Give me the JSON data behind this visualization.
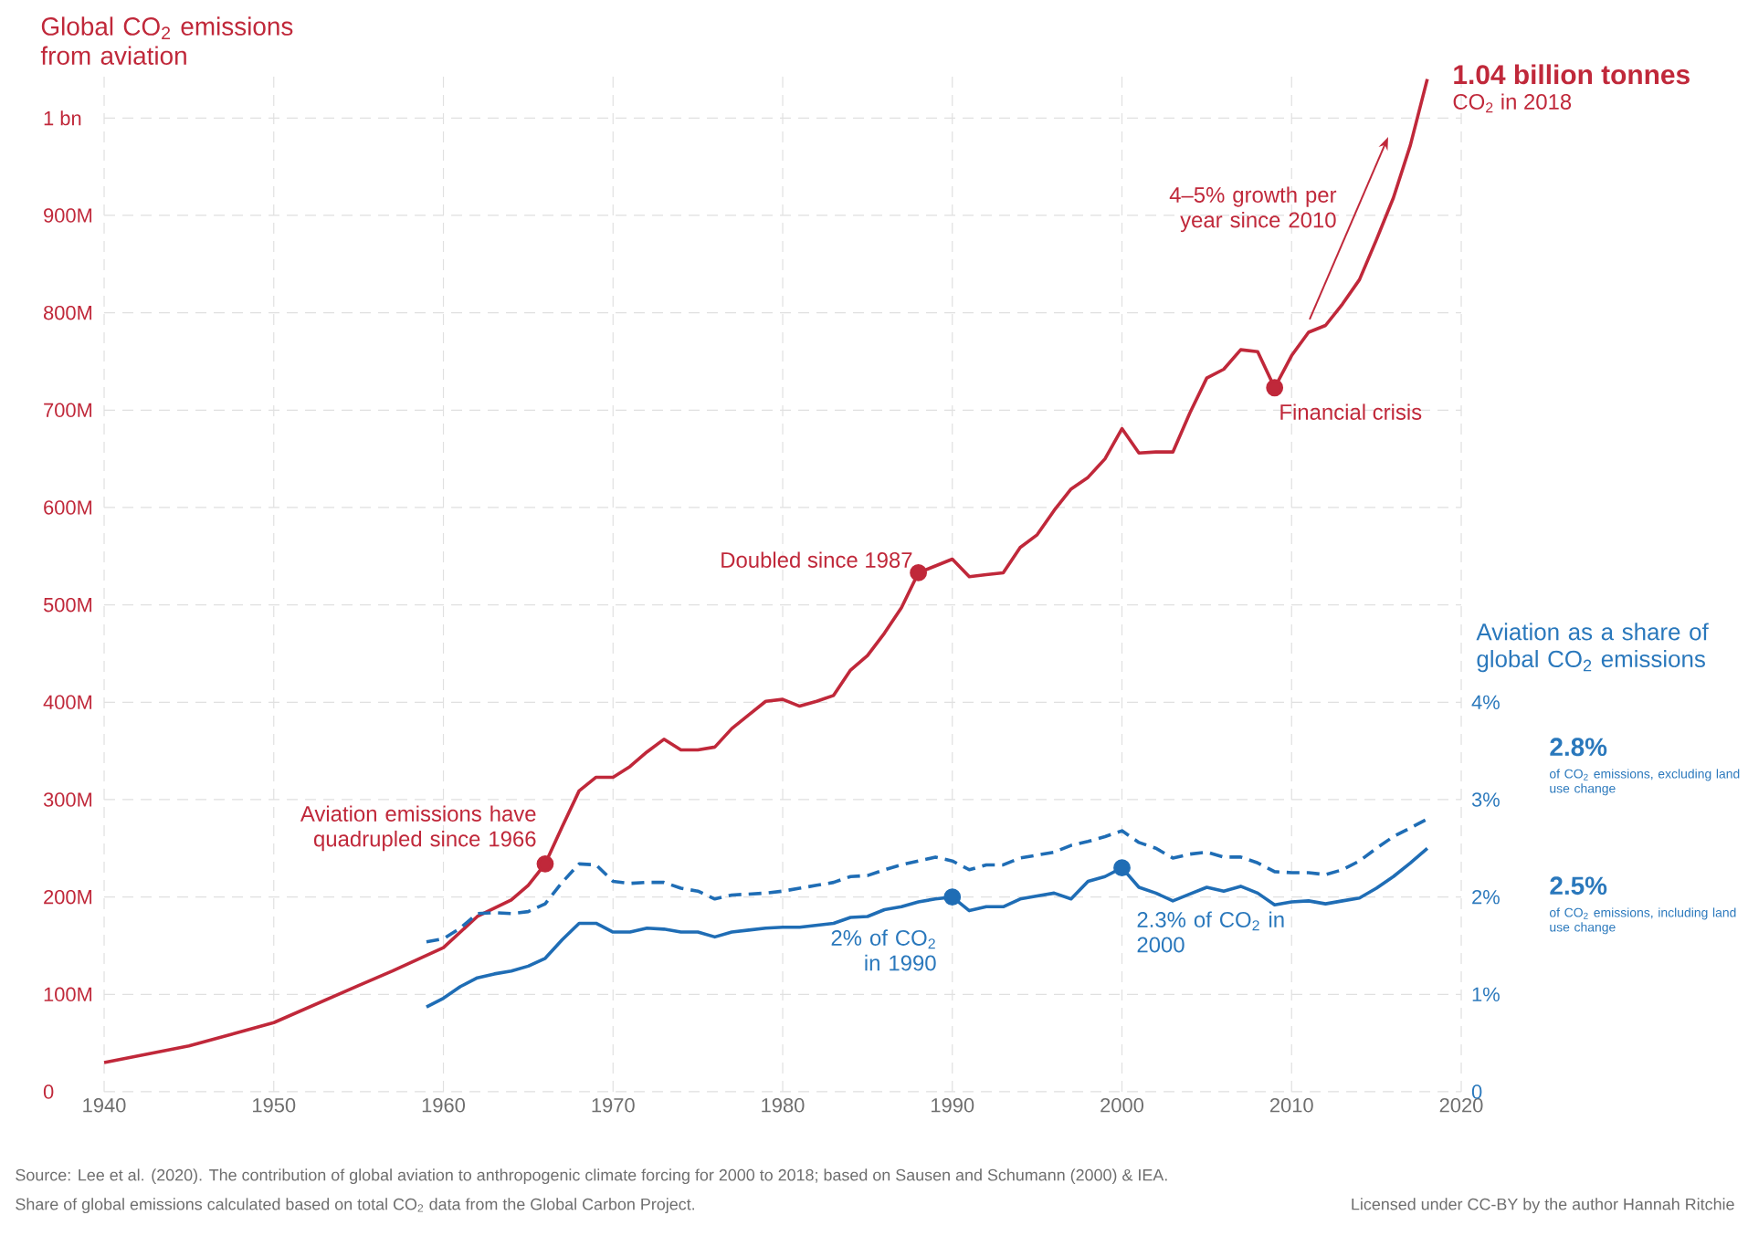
{
  "chart_data": {
    "type": "line",
    "ylabel": "Global CO$_{2}$ emissions from aviation",
    "y2label": "Aviation as a share of global CO$_{2}$ emissions",
    "xlim": [
      1940,
      2020
    ],
    "xticks": [
      1940,
      1950,
      1960,
      1970,
      1980,
      1990,
      2000,
      2010,
      2020
    ],
    "ylim": [
      0,
      1050000000
    ],
    "yticks": [
      0,
      {
        "value": 100000000,
        "label": "100M"
      },
      {
        "value": 200000000,
        "label": "200M"
      },
      {
        "value": 300000000,
        "label": "300M"
      },
      {
        "value": 400000000,
        "label": "400M"
      },
      {
        "value": 500000000,
        "label": "500M"
      },
      {
        "value": 600000000,
        "label": "600M"
      },
      {
        "value": 700000000,
        "label": "700M"
      },
      {
        "value": 800000000,
        "label": "800M"
      },
      {
        "value": 900000000,
        "label": "900M"
      },
      {
        "value": 1000000000,
        "label": "1 bn"
      }
    ],
    "y2lim": [
      0,
      10.5
    ],
    "y2ticks": [
      0,
      {
        "value": 1,
        "label": "1%"
      },
      {
        "value": 2,
        "label": "2%"
      },
      {
        "value": 3,
        "label": "3%"
      },
      {
        "value": 4,
        "label": "4%"
      }
    ],
    "grid": true,
    "series": [
      {
        "color": "#c0283a",
        "x": [
          1940,
          1945,
          1950,
          1955,
          1957,
          1960,
          1962,
          1964,
          1965,
          1966,
          1967,
          1968,
          1969,
          1970,
          1971,
          1972,
          1973,
          1974,
          1975,
          1976,
          1977,
          1978,
          1979,
          1980,
          1981,
          1982,
          1983,
          1984,
          1985,
          1986,
          1987,
          1988,
          1989,
          1990,
          1991,
          1992,
          1993,
          1994,
          1995,
          1996,
          1997,
          1998,
          1999,
          2000,
          2001,
          2002,
          2003,
          2004,
          2005,
          2006,
          2007,
          2008,
          2009,
          2010,
          2011,
          2012,
          2013,
          2014,
          2015,
          2016,
          2017,
          2018
        ],
        "values": [
          30000000,
          47000000,
          71000000,
          109000000,
          124000000,
          148000000,
          180000000,
          197000000,
          212000000,
          234000000,
          272000000,
          309000000,
          323000000,
          323000000,
          334000000,
          349000000,
          362000000,
          351000000,
          351000000,
          354000000,
          373000000,
          387000000,
          401000000,
          403000000,
          396000000,
          401000000,
          407000000,
          433000000,
          448000000,
          471000000,
          497000000,
          533000000,
          540000000,
          547000000,
          529000000,
          531000000,
          533000000,
          559000000,
          572000000,
          597000000,
          619000000,
          631000000,
          650000000,
          681000000,
          656000000,
          657000000,
          657000000,
          697000000,
          733000000,
          742000000,
          762000000,
          760000000,
          723000000,
          756000000,
          780000000,
          787000000,
          809000000,
          834000000,
          875000000,
          918000000,
          972000000,
          1040000000
        ]
      },
      {
        "color": "#1f6db5",
        "axis": "y2",
        "x": [
          1959,
          1960,
          1961,
          1962,
          1963,
          1964,
          1965,
          1966,
          1967,
          1968,
          1969,
          1970,
          1971,
          1972,
          1973,
          1974,
          1975,
          1976,
          1977,
          1978,
          1979,
          1980,
          1981,
          1982,
          1983,
          1984,
          1985,
          1986,
          1987,
          1988,
          1989,
          1990,
          1991,
          1992,
          1993,
          1994,
          1995,
          1996,
          1997,
          1998,
          1999,
          2000,
          2001,
          2002,
          2003,
          2004,
          2005,
          2006,
          2007,
          2008,
          2009,
          2010,
          2011,
          2012,
          2013,
          2014,
          2015,
          2016,
          2017,
          2018
        ],
        "values": [
          0.87,
          0.96,
          1.08,
          1.17,
          1.21,
          1.24,
          1.29,
          1.37,
          1.56,
          1.73,
          1.73,
          1.64,
          1.64,
          1.68,
          1.67,
          1.64,
          1.64,
          1.59,
          1.64,
          1.66,
          1.68,
          1.69,
          1.69,
          1.71,
          1.73,
          1.79,
          1.8,
          1.87,
          1.9,
          1.95,
          1.98,
          2.0,
          1.86,
          1.9,
          1.9,
          1.98,
          2.01,
          2.04,
          1.98,
          2.16,
          2.21,
          2.3,
          2.1,
          2.04,
          1.96,
          2.03,
          2.1,
          2.06,
          2.11,
          2.04,
          1.92,
          1.95,
          1.96,
          1.93,
          1.96,
          1.99,
          2.09,
          2.21,
          2.35,
          2.5
        ]
      },
      {
        "color": "#1f6db5",
        "axis": "y2",
        "line_style": "dashed",
        "x": [
          1959,
          1960,
          1961,
          1962,
          1963,
          1964,
          1965,
          1966,
          1967,
          1968,
          1969,
          1970,
          1971,
          1972,
          1973,
          1974,
          1975,
          1976,
          1977,
          1978,
          1979,
          1980,
          1981,
          1982,
          1983,
          1984,
          1985,
          1986,
          1987,
          1988,
          1989,
          1990,
          1991,
          1992,
          1993,
          1994,
          1995,
          1996,
          1997,
          1998,
          1999,
          2000,
          2001,
          2002,
          2003,
          2004,
          2005,
          2006,
          2007,
          2008,
          2009,
          2010,
          2011,
          2012,
          2013,
          2014,
          2015,
          2016,
          2017,
          2018
        ],
        "values": [
          1.54,
          1.57,
          1.68,
          1.83,
          1.84,
          1.83,
          1.85,
          1.93,
          2.15,
          2.34,
          2.33,
          2.16,
          2.14,
          2.15,
          2.15,
          2.09,
          2.06,
          1.98,
          2.02,
          2.03,
          2.04,
          2.06,
          2.09,
          2.12,
          2.15,
          2.21,
          2.22,
          2.28,
          2.33,
          2.37,
          2.41,
          2.37,
          2.28,
          2.33,
          2.33,
          2.4,
          2.43,
          2.46,
          2.53,
          2.57,
          2.62,
          2.68,
          2.56,
          2.5,
          2.4,
          2.44,
          2.46,
          2.41,
          2.41,
          2.35,
          2.26,
          2.25,
          2.25,
          2.23,
          2.28,
          2.37,
          2.5,
          2.62,
          2.71,
          2.8
        ]
      },
      {
        "type": "scatter",
        "marker": "circle",
        "color": "#c0283a",
        "x": [
          1966,
          1988,
          2009
        ],
        "values": [
          234000000,
          533000000,
          723000000
        ]
      },
      {
        "type": "scatter",
        "marker": "circle",
        "color": "#1f6db5",
        "axis": "y2",
        "x": [
          1990,
          2000
        ],
        "values": [
          2.0,
          2.3
        ]
      }
    ],
    "annotations": [
      "1.04 billion tonnes",
      "CO$_{2}$ in 2018",
      "4–5% growth per year since 2010",
      "Financial crisis",
      "Doubled since 1987",
      "Aviation emissions have quadrupled since 1966",
      "2% of CO$_{2}$ in 1990",
      "2.3% of CO$_{2}$ in 2000",
      "2.8%",
      "of CO$_{2}$ emissions, excluding land use change",
      "2.5%",
      "of CO$_{2}$ emissions, including land use change",
      "Source: Lee et al. (2020). The contribution of global aviation to anthropogenic climate forcing for 2000 to 2018; based on Sausen and Schumann (2000) & IEA.",
      "Share of global emissions calculated based on total CO$_{2}$ data from the Global Carbon Project.",
      "Licensed under CC-BY by the author Hannah Ritchie"
    ]
  }
}
